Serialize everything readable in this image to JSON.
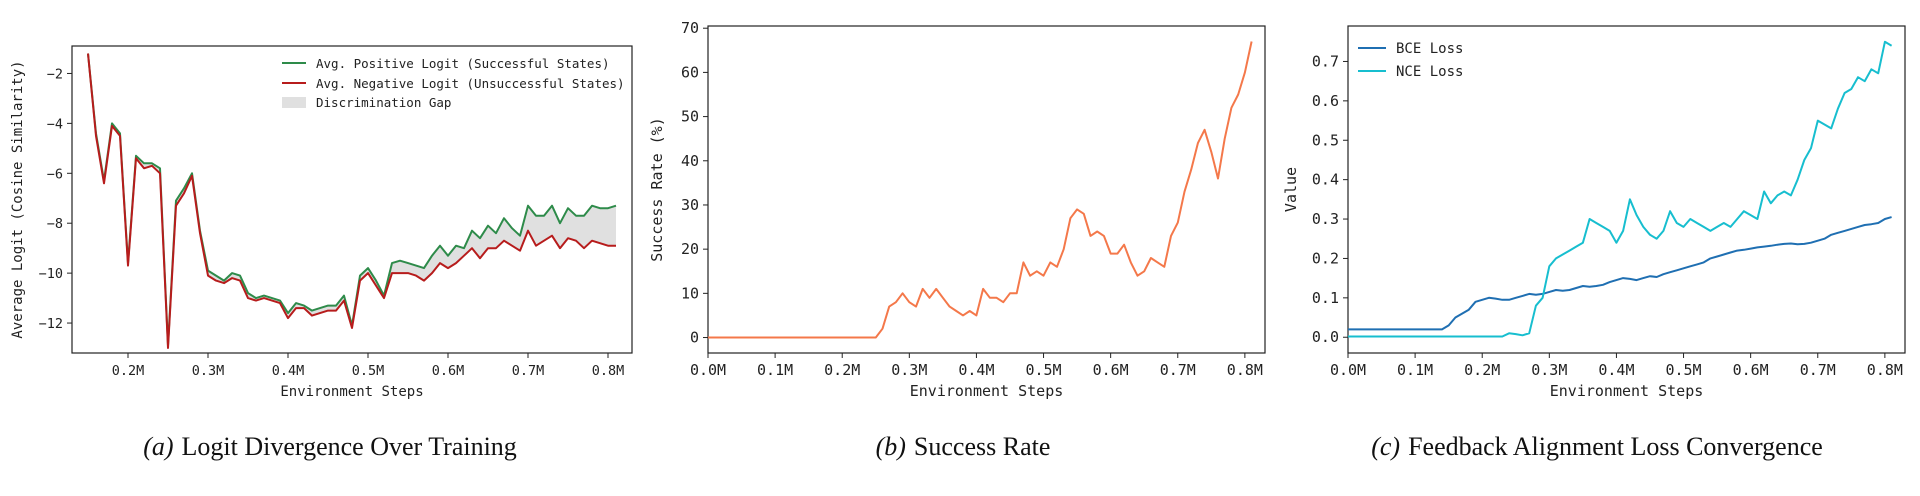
{
  "colors": {
    "positive": "#2e8b4a",
    "negative": "#b71c1c",
    "gap": "#e0e0e0",
    "success": "#f4784a",
    "bce": "#1f6fb2",
    "nce": "#17becf",
    "axis": "#222222"
  },
  "chart_data": [
    {
      "type": "area",
      "caption_letter": "(a)",
      "caption_text": "Logit Divergence Over Training",
      "xlabel": "Environment Steps",
      "ylabel": "Average Logit (Cosine Similarity)",
      "xlim": [
        0.13,
        0.83
      ],
      "ylim": [
        -13.2,
        -0.9
      ],
      "xticks": [
        0.2,
        0.3,
        0.4,
        0.5,
        0.6,
        0.7,
        0.8
      ],
      "xtick_labels": [
        "0.2M",
        "0.3M",
        "0.4M",
        "0.5M",
        "0.6M",
        "0.7M",
        "0.8M"
      ],
      "yticks": [
        -2,
        -4,
        -6,
        -8,
        -10,
        -12
      ],
      "ytick_labels": [
        "−2",
        "−4",
        "−6",
        "−8",
        "−10",
        "−12"
      ],
      "grid": false,
      "legend_position": "top-right",
      "gap_label": "Discrimination Gap",
      "x": [
        0.15,
        0.16,
        0.17,
        0.18,
        0.19,
        0.2,
        0.21,
        0.22,
        0.23,
        0.24,
        0.25,
        0.26,
        0.27,
        0.28,
        0.29,
        0.3,
        0.31,
        0.32,
        0.33,
        0.34,
        0.35,
        0.36,
        0.37,
        0.38,
        0.39,
        0.4,
        0.41,
        0.42,
        0.43,
        0.44,
        0.45,
        0.46,
        0.47,
        0.48,
        0.49,
        0.5,
        0.51,
        0.52,
        0.53,
        0.54,
        0.55,
        0.56,
        0.57,
        0.58,
        0.59,
        0.6,
        0.61,
        0.62,
        0.63,
        0.64,
        0.65,
        0.66,
        0.67,
        0.68,
        0.69,
        0.7,
        0.71,
        0.72,
        0.73,
        0.74,
        0.75,
        0.76,
        0.77,
        0.78,
        0.79,
        0.8,
        0.81
      ],
      "series": [
        {
          "name": "Avg. Positive Logit (Successful States)",
          "values": [
            -1.2,
            -4.4,
            -6.3,
            -4.0,
            -4.4,
            -9.6,
            -5.3,
            -5.6,
            -5.6,
            -5.8,
            -12.9,
            -7.1,
            -6.6,
            -6.0,
            -8.3,
            -9.9,
            -10.1,
            -10.3,
            -10.0,
            -10.1,
            -10.8,
            -11.0,
            -10.9,
            -11.0,
            -11.1,
            -11.6,
            -11.2,
            -11.3,
            -11.5,
            -11.4,
            -11.3,
            -11.3,
            -10.9,
            -12.1,
            -10.1,
            -9.8,
            -10.3,
            -10.9,
            -9.6,
            -9.5,
            -9.6,
            -9.7,
            -9.8,
            -9.3,
            -8.9,
            -9.3,
            -8.9,
            -9.0,
            -8.3,
            -8.6,
            -8.1,
            -8.4,
            -7.8,
            -8.2,
            -8.5,
            -7.3,
            -7.7,
            -7.7,
            -7.3,
            -8.0,
            -7.4,
            -7.7,
            -7.7,
            -7.3,
            -7.4,
            -7.4,
            -7.3
          ]
        },
        {
          "name": "Avg. Negative Logit (Unsuccessful States)",
          "values": [
            -1.2,
            -4.5,
            -6.4,
            -4.1,
            -4.5,
            -9.7,
            -5.4,
            -5.8,
            -5.7,
            -6.0,
            -13.0,
            -7.3,
            -6.8,
            -6.1,
            -8.4,
            -10.1,
            -10.3,
            -10.4,
            -10.2,
            -10.3,
            -11.0,
            -11.1,
            -11.0,
            -11.1,
            -11.2,
            -11.8,
            -11.4,
            -11.4,
            -11.7,
            -11.6,
            -11.5,
            -11.5,
            -11.1,
            -12.2,
            -10.3,
            -10.0,
            -10.5,
            -11.0,
            -10.0,
            -10.0,
            -10.0,
            -10.1,
            -10.3,
            -10.0,
            -9.6,
            -9.8,
            -9.6,
            -9.3,
            -9.0,
            -9.4,
            -9.0,
            -9.0,
            -8.7,
            -8.9,
            -9.1,
            -8.3,
            -8.9,
            -8.7,
            -8.5,
            -9.0,
            -8.6,
            -8.7,
            -9.0,
            -8.7,
            -8.8,
            -8.9,
            -8.9
          ]
        }
      ]
    },
    {
      "type": "line",
      "caption_letter": "(b)",
      "caption_text": "Success Rate",
      "xlabel": "Environment Steps",
      "ylabel": "Success Rate (%)",
      "xlim": [
        0.0,
        0.83
      ],
      "ylim": [
        -3.5,
        70.5
      ],
      "xticks": [
        0.0,
        0.1,
        0.2,
        0.3,
        0.4,
        0.5,
        0.6,
        0.7,
        0.8
      ],
      "xtick_labels": [
        "0.0M",
        "0.1M",
        "0.2M",
        "0.3M",
        "0.4M",
        "0.5M",
        "0.6M",
        "0.7M",
        "0.8M"
      ],
      "yticks": [
        0,
        10,
        20,
        30,
        40,
        50,
        60,
        70
      ],
      "ytick_labels": [
        "0",
        "10",
        "20",
        "30",
        "40",
        "50",
        "60",
        "70"
      ],
      "grid": false,
      "x": [
        0.0,
        0.24,
        0.25,
        0.26,
        0.27,
        0.28,
        0.29,
        0.3,
        0.31,
        0.32,
        0.33,
        0.34,
        0.35,
        0.36,
        0.37,
        0.38,
        0.39,
        0.4,
        0.41,
        0.42,
        0.43,
        0.44,
        0.45,
        0.46,
        0.47,
        0.48,
        0.49,
        0.5,
        0.51,
        0.52,
        0.53,
        0.54,
        0.55,
        0.56,
        0.57,
        0.58,
        0.59,
        0.6,
        0.61,
        0.62,
        0.63,
        0.64,
        0.65,
        0.66,
        0.67,
        0.68,
        0.69,
        0.7,
        0.71,
        0.72,
        0.73,
        0.74,
        0.75,
        0.76,
        0.77,
        0.78,
        0.79,
        0.8,
        0.81
      ],
      "series": [
        {
          "name": "",
          "values": [
            0,
            0,
            0,
            2,
            7,
            8,
            10,
            8,
            7,
            11,
            9,
            11,
            9,
            7,
            6,
            5,
            6,
            5,
            11,
            9,
            9,
            8,
            10,
            10,
            17,
            14,
            15,
            14,
            17,
            16,
            20,
            27,
            29,
            28,
            23,
            24,
            23,
            19,
            19,
            21,
            17,
            14,
            15,
            18,
            17,
            16,
            23,
            26,
            33,
            38,
            44,
            47,
            42,
            36,
            45,
            52,
            55,
            60,
            67
          ]
        }
      ]
    },
    {
      "type": "line",
      "caption_letter": "(c)",
      "caption_text": "Feedback Alignment Loss Convergence",
      "xlabel": "Environment Steps",
      "ylabel": "Value",
      "xlim": [
        0.0,
        0.83
      ],
      "ylim": [
        -0.04,
        0.79
      ],
      "xticks": [
        0.0,
        0.1,
        0.2,
        0.3,
        0.4,
        0.5,
        0.6,
        0.7,
        0.8
      ],
      "xtick_labels": [
        "0.0M",
        "0.1M",
        "0.2M",
        "0.3M",
        "0.4M",
        "0.5M",
        "0.6M",
        "0.7M",
        "0.8M"
      ],
      "yticks": [
        0.0,
        0.1,
        0.2,
        0.3,
        0.4,
        0.5,
        0.6,
        0.7
      ],
      "ytick_labels": [
        "0.0",
        "0.1",
        "0.2",
        "0.3",
        "0.4",
        "0.5",
        "0.6",
        "0.7"
      ],
      "grid": false,
      "legend_position": "top-left",
      "x": [
        0.0,
        0.01,
        0.02,
        0.03,
        0.04,
        0.05,
        0.06,
        0.07,
        0.08,
        0.09,
        0.1,
        0.11,
        0.12,
        0.13,
        0.14,
        0.15,
        0.16,
        0.17,
        0.18,
        0.19,
        0.2,
        0.21,
        0.22,
        0.23,
        0.24,
        0.25,
        0.26,
        0.27,
        0.28,
        0.29,
        0.3,
        0.31,
        0.32,
        0.33,
        0.34,
        0.35,
        0.36,
        0.37,
        0.38,
        0.39,
        0.4,
        0.41,
        0.42,
        0.43,
        0.44,
        0.45,
        0.46,
        0.47,
        0.48,
        0.49,
        0.5,
        0.51,
        0.52,
        0.53,
        0.54,
        0.55,
        0.56,
        0.57,
        0.58,
        0.59,
        0.6,
        0.61,
        0.62,
        0.63,
        0.64,
        0.65,
        0.66,
        0.67,
        0.68,
        0.69,
        0.7,
        0.71,
        0.72,
        0.73,
        0.74,
        0.75,
        0.76,
        0.77,
        0.78,
        0.79,
        0.8,
        0.81
      ],
      "series": [
        {
          "name": "BCE Loss",
          "values": [
            0.02,
            0.02,
            0.02,
            0.02,
            0.02,
            0.02,
            0.02,
            0.02,
            0.02,
            0.02,
            0.02,
            0.02,
            0.02,
            0.02,
            0.02,
            0.03,
            0.05,
            0.06,
            0.07,
            0.09,
            0.095,
            0.1,
            0.098,
            0.095,
            0.095,
            0.1,
            0.105,
            0.11,
            0.108,
            0.11,
            0.115,
            0.12,
            0.118,
            0.12,
            0.125,
            0.13,
            0.128,
            0.13,
            0.133,
            0.14,
            0.145,
            0.15,
            0.148,
            0.145,
            0.15,
            0.155,
            0.153,
            0.16,
            0.165,
            0.17,
            0.175,
            0.18,
            0.185,
            0.19,
            0.2,
            0.205,
            0.21,
            0.215,
            0.22,
            0.222,
            0.225,
            0.228,
            0.23,
            0.232,
            0.235,
            0.237,
            0.238,
            0.236,
            0.237,
            0.24,
            0.245,
            0.25,
            0.26,
            0.265,
            0.27,
            0.275,
            0.28,
            0.285,
            0.287,
            0.29,
            0.3,
            0.305
          ]
        },
        {
          "name": "NCE Loss",
          "values": [
            0.002,
            0.002,
            0.002,
            0.002,
            0.002,
            0.002,
            0.002,
            0.002,
            0.002,
            0.002,
            0.002,
            0.002,
            0.002,
            0.002,
            0.002,
            0.002,
            0.002,
            0.002,
            0.002,
            0.002,
            0.002,
            0.002,
            0.002,
            0.002,
            0.01,
            0.008,
            0.005,
            0.01,
            0.08,
            0.1,
            0.18,
            0.2,
            0.21,
            0.22,
            0.23,
            0.24,
            0.3,
            0.29,
            0.28,
            0.27,
            0.24,
            0.27,
            0.35,
            0.31,
            0.28,
            0.26,
            0.25,
            0.27,
            0.32,
            0.29,
            0.28,
            0.3,
            0.29,
            0.28,
            0.27,
            0.28,
            0.29,
            0.28,
            0.3,
            0.32,
            0.31,
            0.3,
            0.37,
            0.34,
            0.36,
            0.37,
            0.36,
            0.4,
            0.45,
            0.48,
            0.55,
            0.54,
            0.53,
            0.58,
            0.62,
            0.63,
            0.66,
            0.65,
            0.68,
            0.67,
            0.75,
            0.74
          ]
        }
      ]
    }
  ]
}
